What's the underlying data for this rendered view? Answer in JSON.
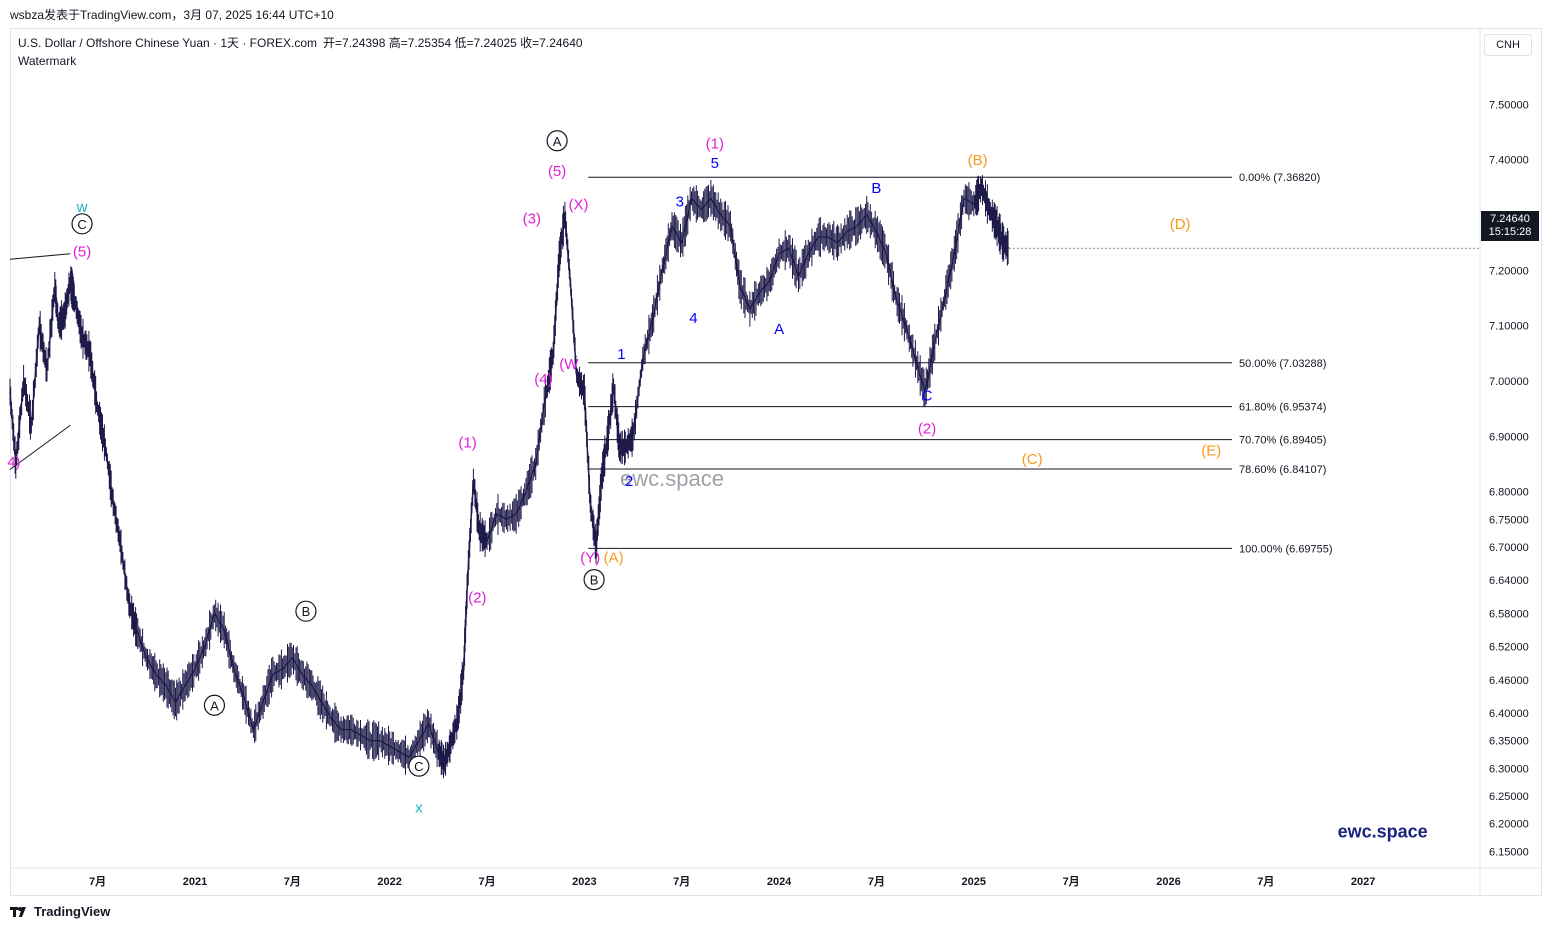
{
  "caption": "wsbza发表于TradingView.com，3月 07, 2025 16:44 UTC+10",
  "legend": {
    "symbol": "U.S. Dollar / Offshore Chinese Yuan · 1天 · FOREX.com",
    "ohlc": "开=7.24398  高=7.25354  低=7.24025  收=7.24640",
    "watermark_label": "Watermark"
  },
  "currency_button": "CNH",
  "price_badge": {
    "price": "7.24640",
    "countdown": "15:15:28"
  },
  "footer": {
    "brand": "TradingView"
  },
  "colors": {
    "price_line": "#1e1a4a",
    "fib_line": "#131722",
    "magenta": "#e01fd8",
    "blue": "#0000ff",
    "orange": "#f59a1c",
    "teal": "#20b2c8",
    "black": "#131722",
    "watermark": "#a0a0a8",
    "brand": "#1a237e"
  },
  "chart_data": {
    "type": "line",
    "y_axis": {
      "ticks": [
        7.5,
        7.4,
        7.3,
        7.2,
        7.1,
        7.0,
        6.9,
        6.8,
        6.75,
        6.7,
        6.64,
        6.58,
        6.52,
        6.46,
        6.4,
        6.35,
        6.3,
        6.25,
        6.2,
        6.15
      ],
      "tick_labels": [
        "7.50000",
        "7.40000",
        "7.30000",
        "7.20000",
        "7.10000",
        "7.00000",
        "6.90000",
        "6.80000",
        "6.75000",
        "6.70000",
        "6.64000",
        "6.58000",
        "6.52000",
        "6.46000",
        "6.40000",
        "6.35000",
        "6.30000",
        "6.25000",
        "6.20000",
        "6.15000"
      ],
      "ylim": [
        6.12,
        7.58
      ]
    },
    "x_axis": {
      "xlim": [
        2020.05,
        2027.6
      ],
      "ticks": [
        {
          "x": 2020.5,
          "label": "7月"
        },
        {
          "x": 2021.0,
          "label": "2021"
        },
        {
          "x": 2021.5,
          "label": "7月"
        },
        {
          "x": 2022.0,
          "label": "2022"
        },
        {
          "x": 2022.5,
          "label": "7月"
        },
        {
          "x": 2023.0,
          "label": "2023"
        },
        {
          "x": 2023.5,
          "label": "7月"
        },
        {
          "x": 2024.0,
          "label": "2024"
        },
        {
          "x": 2024.5,
          "label": "7月"
        },
        {
          "x": 2025.0,
          "label": "2025"
        },
        {
          "x": 2025.5,
          "label": "7月"
        },
        {
          "x": 2026.0,
          "label": "2026"
        },
        {
          "x": 2026.5,
          "label": "7月"
        },
        {
          "x": 2027.0,
          "label": "2027"
        }
      ]
    },
    "series": [
      {
        "x": [
          2020.05,
          2020.08,
          2020.12,
          2020.16,
          2020.2,
          2020.24,
          2020.28,
          2020.3,
          2020.33,
          2020.36,
          2020.38,
          2020.42,
          2020.46,
          2020.5,
          2020.54,
          2020.58,
          2020.62,
          2020.66,
          2020.7,
          2020.75,
          2020.8,
          2020.85,
          2020.9,
          2020.95,
          2021.0,
          2021.05,
          2021.1,
          2021.15,
          2021.2,
          2021.25,
          2021.3,
          2021.35,
          2021.4,
          2021.45,
          2021.5,
          2021.55,
          2021.6,
          2021.65,
          2021.7,
          2021.75,
          2021.8,
          2021.85,
          2021.9,
          2021.95,
          2022.0,
          2022.05,
          2022.1,
          2022.15,
          2022.2,
          2022.25,
          2022.28,
          2022.31,
          2022.35,
          2022.38,
          2022.4,
          2022.43,
          2022.46,
          2022.5,
          2022.55,
          2022.6,
          2022.65,
          2022.7,
          2022.75,
          2022.8,
          2022.84,
          2022.87,
          2022.9,
          2022.93,
          2022.96,
          2023.0,
          2023.03,
          2023.06,
          2023.09,
          2023.12,
          2023.15,
          2023.18,
          2023.21,
          2023.25,
          2023.3,
          2023.35,
          2023.4,
          2023.45,
          2023.5,
          2023.55,
          2023.6,
          2023.65,
          2023.7,
          2023.75,
          2023.8,
          2023.85,
          2023.9,
          2023.95,
          2024.0,
          2024.05,
          2024.1,
          2024.15,
          2024.2,
          2024.25,
          2024.3,
          2024.35,
          2024.4,
          2024.45,
          2024.5,
          2024.55,
          2024.6,
          2024.65,
          2024.7,
          2024.75,
          2024.8,
          2024.85,
          2024.9,
          2024.95,
          2025.0,
          2025.04,
          2025.08,
          2025.12,
          2025.15,
          2025.18
        ],
        "values": [
          6.98,
          6.85,
          7.0,
          6.92,
          7.1,
          7.02,
          7.17,
          7.1,
          7.12,
          7.18,
          7.15,
          7.08,
          7.05,
          6.95,
          6.88,
          6.78,
          6.7,
          6.6,
          6.55,
          6.5,
          6.47,
          6.45,
          6.42,
          6.45,
          6.48,
          6.52,
          6.58,
          6.55,
          6.48,
          6.43,
          6.37,
          6.42,
          6.47,
          6.48,
          6.5,
          6.47,
          6.45,
          6.42,
          6.39,
          6.37,
          6.37,
          6.36,
          6.35,
          6.35,
          6.34,
          6.33,
          6.32,
          6.35,
          6.38,
          6.33,
          6.31,
          6.34,
          6.39,
          6.48,
          6.64,
          6.82,
          6.73,
          6.71,
          6.76,
          6.75,
          6.76,
          6.8,
          6.85,
          6.97,
          7.05,
          7.22,
          7.3,
          7.17,
          7.01,
          6.98,
          6.78,
          6.7,
          6.83,
          6.9,
          6.99,
          6.88,
          6.88,
          6.9,
          7.04,
          7.11,
          7.2,
          7.28,
          7.25,
          7.33,
          7.31,
          7.33,
          7.3,
          7.28,
          7.17,
          7.13,
          7.16,
          7.18,
          7.23,
          7.24,
          7.19,
          7.23,
          7.26,
          7.26,
          7.25,
          7.27,
          7.28,
          7.3,
          7.27,
          7.23,
          7.15,
          7.1,
          7.04,
          6.98,
          7.07,
          7.15,
          7.23,
          7.33,
          7.32,
          7.35,
          7.31,
          7.28,
          7.25,
          7.24
        ]
      }
    ],
    "trend_lines": [
      {
        "from": [
          2020.05,
          7.22
        ],
        "to": [
          2020.36,
          7.23
        ]
      },
      {
        "from": [
          2020.05,
          6.84
        ],
        "to": [
          2020.36,
          6.92
        ]
      }
    ],
    "fib_levels": [
      {
        "value": 7.3682,
        "label": "0.00% (7.36820)"
      },
      {
        "value": 7.03288,
        "label": "50.00% (7.03288)"
      },
      {
        "value": 6.95374,
        "label": "61.80% (6.95374)"
      },
      {
        "value": 6.89405,
        "label": "70.70% (6.89405)"
      },
      {
        "value": 6.84107,
        "label": "78.60% (6.84107)"
      },
      {
        "value": 6.69755,
        "label": "100.00% (6.69755)"
      }
    ],
    "fib_start_x": 2903,
    "annotations": [
      {
        "text": "w",
        "x": 2020.42,
        "y": 7.305,
        "color": "teal",
        "circled": false
      },
      {
        "text": "C",
        "x": 2020.42,
        "y": 7.275,
        "color": "black",
        "circled": true
      },
      {
        "text": "(5)",
        "x": 2020.42,
        "y": 7.225,
        "color": "magenta",
        "circled": false
      },
      {
        "text": "4)",
        "x": 2020.07,
        "y": 6.845,
        "color": "magenta",
        "circled": false
      },
      {
        "text": "A",
        "x": 2021.1,
        "y": 6.405,
        "color": "black",
        "circled": true
      },
      {
        "text": "B",
        "x": 2021.57,
        "y": 6.575,
        "color": "black",
        "circled": true
      },
      {
        "text": "C",
        "x": 2022.15,
        "y": 6.295,
        "color": "black",
        "circled": true
      },
      {
        "text": "x",
        "x": 2022.15,
        "y": 6.22,
        "color": "teal",
        "circled": false
      },
      {
        "text": "(1)",
        "x": 2022.4,
        "y": 6.88,
        "color": "magenta",
        "circled": false
      },
      {
        "text": "(2)",
        "x": 2022.45,
        "y": 6.6,
        "color": "magenta",
        "circled": false
      },
      {
        "text": "(3)",
        "x": 2022.73,
        "y": 7.285,
        "color": "magenta",
        "circled": false
      },
      {
        "text": "(4)",
        "x": 2022.79,
        "y": 6.995,
        "color": "magenta",
        "circled": false
      },
      {
        "text": "(W",
        "x": 2022.92,
        "y": 7.022,
        "color": "magenta",
        "circled": false
      },
      {
        "text": "(5)",
        "x": 2022.86,
        "y": 7.37,
        "color": "magenta",
        "circled": false
      },
      {
        "text": "A",
        "x": 2022.86,
        "y": 7.425,
        "color": "black",
        "circled": true
      },
      {
        "text": "(X)",
        "x": 2022.97,
        "y": 7.31,
        "color": "magenta",
        "circled": false
      },
      {
        "text": "(Y)",
        "x": 2023.03,
        "y": 6.672,
        "color": "magenta",
        "circled": false
      },
      {
        "text": "(A)",
        "x": 2023.15,
        "y": 6.672,
        "color": "orange",
        "circled": false
      },
      {
        "text": "B",
        "x": 2023.05,
        "y": 6.632,
        "color": "black",
        "circled": true
      },
      {
        "text": "1",
        "x": 2023.19,
        "y": 7.04,
        "color": "blue",
        "circled": false
      },
      {
        "text": "2",
        "x": 2023.23,
        "y": 6.81,
        "color": "blue",
        "circled": false
      },
      {
        "text": "3",
        "x": 2023.49,
        "y": 7.315,
        "color": "blue",
        "circled": false
      },
      {
        "text": "4",
        "x": 2023.56,
        "y": 7.105,
        "color": "blue",
        "circled": false
      },
      {
        "text": "5",
        "x": 2023.67,
        "y": 7.385,
        "color": "blue",
        "circled": false
      },
      {
        "text": "(1)",
        "x": 2023.67,
        "y": 7.42,
        "color": "magenta",
        "circled": false
      },
      {
        "text": "A",
        "x": 2024.0,
        "y": 7.085,
        "color": "blue",
        "circled": false
      },
      {
        "text": "B",
        "x": 2024.5,
        "y": 7.34,
        "color": "blue",
        "circled": false
      },
      {
        "text": "C",
        "x": 2024.76,
        "y": 6.965,
        "color": "blue",
        "circled": false
      },
      {
        "text": "(2)",
        "x": 2024.76,
        "y": 6.905,
        "color": "magenta",
        "circled": false
      },
      {
        "text": "(B)",
        "x": 2025.02,
        "y": 7.39,
        "color": "orange",
        "circled": false
      },
      {
        "text": "(C)",
        "x": 2025.3,
        "y": 6.85,
        "color": "orange",
        "circled": false
      },
      {
        "text": "(D)",
        "x": 2026.06,
        "y": 7.275,
        "color": "orange",
        "circled": false
      },
      {
        "text": "(E)",
        "x": 2026.22,
        "y": 6.865,
        "color": "orange",
        "circled": false
      }
    ],
    "watermarks": [
      "ewc.space",
      "ewc.space"
    ],
    "watermark_positions": [
      [
        2023.45,
        6.81
      ],
      [
        2027.1,
        6.175
      ]
    ]
  }
}
